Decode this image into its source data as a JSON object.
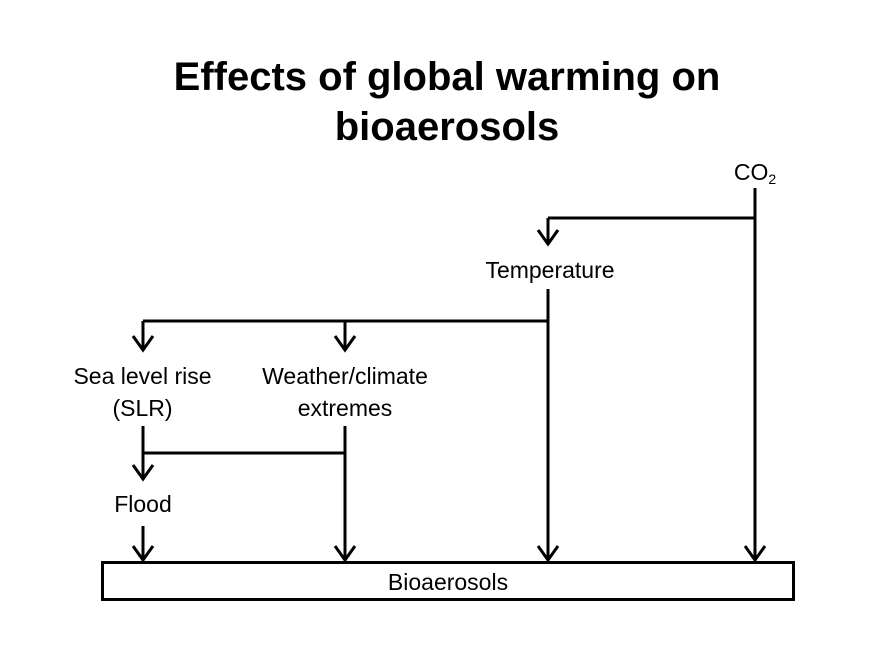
{
  "title": {
    "line1": "Effects of global warming on",
    "line2": "bioaerosols"
  },
  "nodes": {
    "co2_base": "CO",
    "co2_sub": "2",
    "temperature": "Temperature",
    "slr_line1": "Sea level rise",
    "slr_line2": "(SLR)",
    "weather_line1": "Weather/climate",
    "weather_line2": "extremes",
    "flood": "Flood",
    "bioaerosols": "Bioaerosols"
  },
  "colors": {
    "line": "#000000",
    "background": "#ffffff"
  }
}
